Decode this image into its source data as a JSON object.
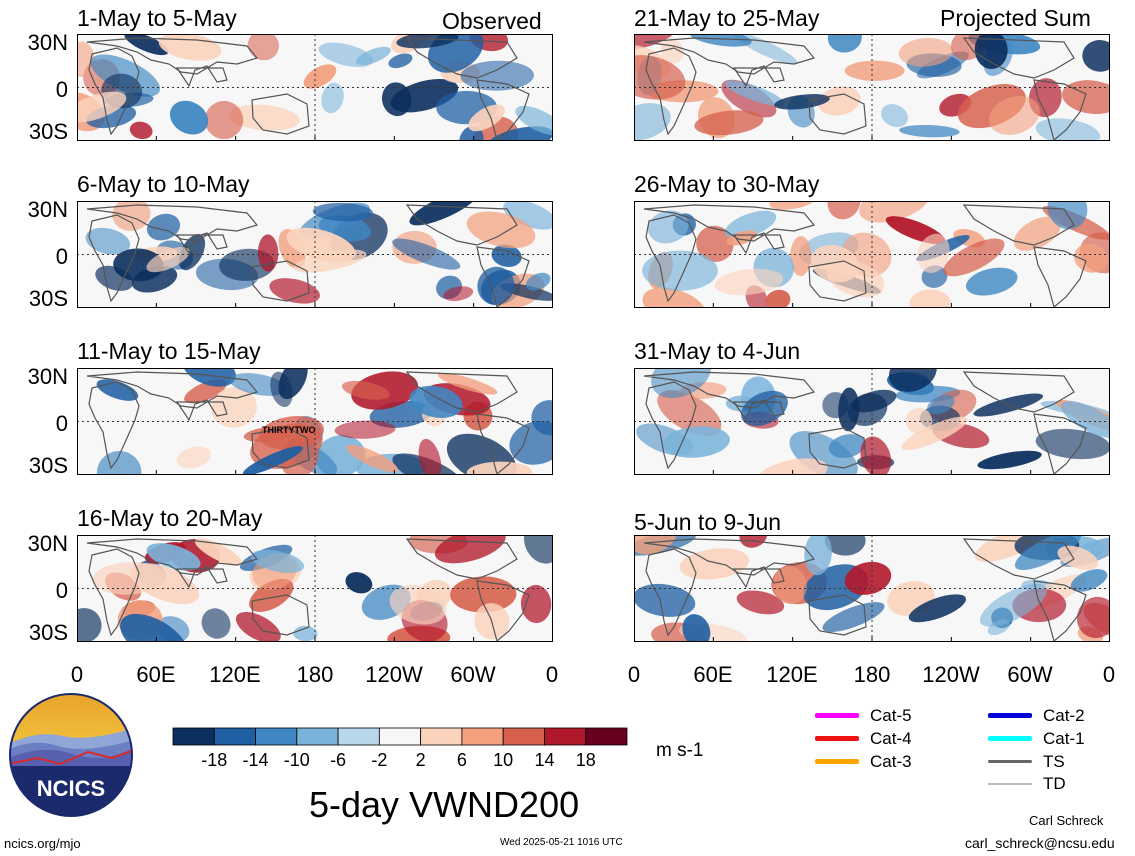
{
  "panels": [
    {
      "title": "1-May to 5-May",
      "tag": "Observed",
      "storm": ""
    },
    {
      "title": "6-May to 10-May",
      "tag": "",
      "storm": ""
    },
    {
      "title": "11-May to 15-May",
      "tag": "",
      "storm": "THIRTYTWO"
    },
    {
      "title": "16-May to 20-May",
      "tag": "",
      "storm": ""
    },
    {
      "title": "21-May to 25-May",
      "tag": "Projected Sum",
      "storm": ""
    },
    {
      "title": "26-May to 30-May",
      "tag": "",
      "storm": ""
    },
    {
      "title": "31-May to 4-Jun",
      "tag": "",
      "storm": ""
    },
    {
      "title": "5-Jun to 9-Jun",
      "tag": "",
      "storm": ""
    }
  ],
  "lat_labels": [
    "30N",
    "0",
    "30S"
  ],
  "lon_labels": [
    "0",
    "60E",
    "120E",
    "180",
    "120W",
    "60W",
    "0"
  ],
  "colorbar": {
    "ticks": [
      "-18",
      "-14",
      "-10",
      "-6",
      "-2",
      "2",
      "6",
      "10",
      "14",
      "18"
    ],
    "colors": [
      "#0b2f5e",
      "#1f5fa3",
      "#3f87c2",
      "#7ab3da",
      "#b8d7ea",
      "#f7f7f7",
      "#fbd3bd",
      "#f2a07e",
      "#d6604d",
      "#b2182b",
      "#67001f"
    ],
    "units": "m s-1"
  },
  "legend": [
    {
      "label": "Cat-5",
      "color": "#ff00ff"
    },
    {
      "label": "Cat-4",
      "color": "#ee1111"
    },
    {
      "label": "Cat-3",
      "color": "#ffa500"
    },
    {
      "label": "Cat-2",
      "color": "#0000dd"
    },
    {
      "label": "Cat-1",
      "color": "#00ffff"
    },
    {
      "label": "TS",
      "color": "#666666"
    },
    {
      "label": "TD",
      "color": "#bbbbbb"
    }
  ],
  "main_title": "5-day VWND200",
  "logo_text": "NCICS",
  "footer": {
    "left": "ncics.org/mjo",
    "center": "Wed 2025-05-21 1016 UTC",
    "author": "Carl Schreck",
    "email": "carl_schreck@ncsu.edu"
  }
}
